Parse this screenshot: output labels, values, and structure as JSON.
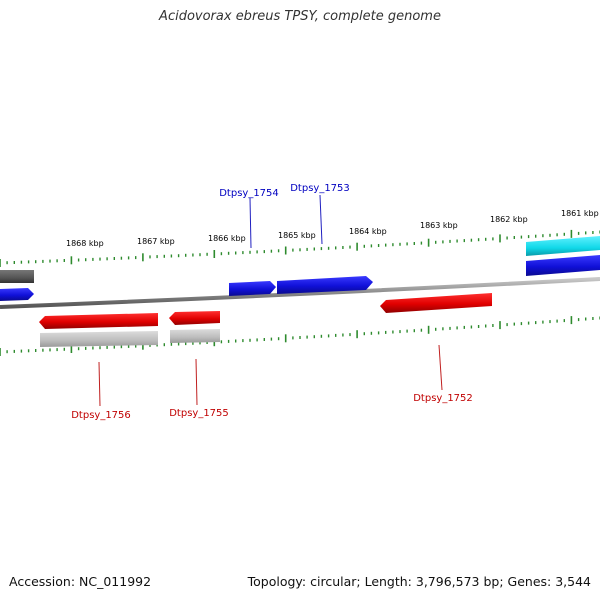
{
  "title": "Acidovorax ebreus TPSY, complete genome",
  "footer": {
    "accession": "Accession: NC_011992",
    "summary": "Topology: circular; Length: 3,796,573 bp; Genes: 3,544"
  },
  "colors": {
    "forward_gene": "#1010d8",
    "reverse_gene": "#e00000",
    "cds_shadow": "#bcbcbc",
    "cyan_feature": "#10d8e8",
    "dark_feature": "#555555",
    "tick": "#2e8b2e",
    "backbone": "#8a8a8a",
    "forward_label": "#0000c0",
    "reverse_label": "#c00000",
    "scale_label": "#000000"
  },
  "scale": {
    "kbp_labels": [
      "1868 kbp",
      "1867 kbp",
      "1866 kbp",
      "1865 kbp",
      "1864 kbp",
      "1863 kbp",
      "1862 kbp",
      "1861 kbp"
    ]
  },
  "genes": [
    {
      "id": "Dtpsy_1754",
      "strand": "+",
      "labeled": true
    },
    {
      "id": "Dtpsy_1753",
      "strand": "+",
      "labeled": true
    },
    {
      "id": "Dtpsy_1756",
      "strand": "-",
      "labeled": true
    },
    {
      "id": "Dtpsy_1755",
      "strand": "-",
      "labeled": true
    },
    {
      "id": "Dtpsy_1752",
      "strand": "-",
      "labeled": true
    }
  ]
}
